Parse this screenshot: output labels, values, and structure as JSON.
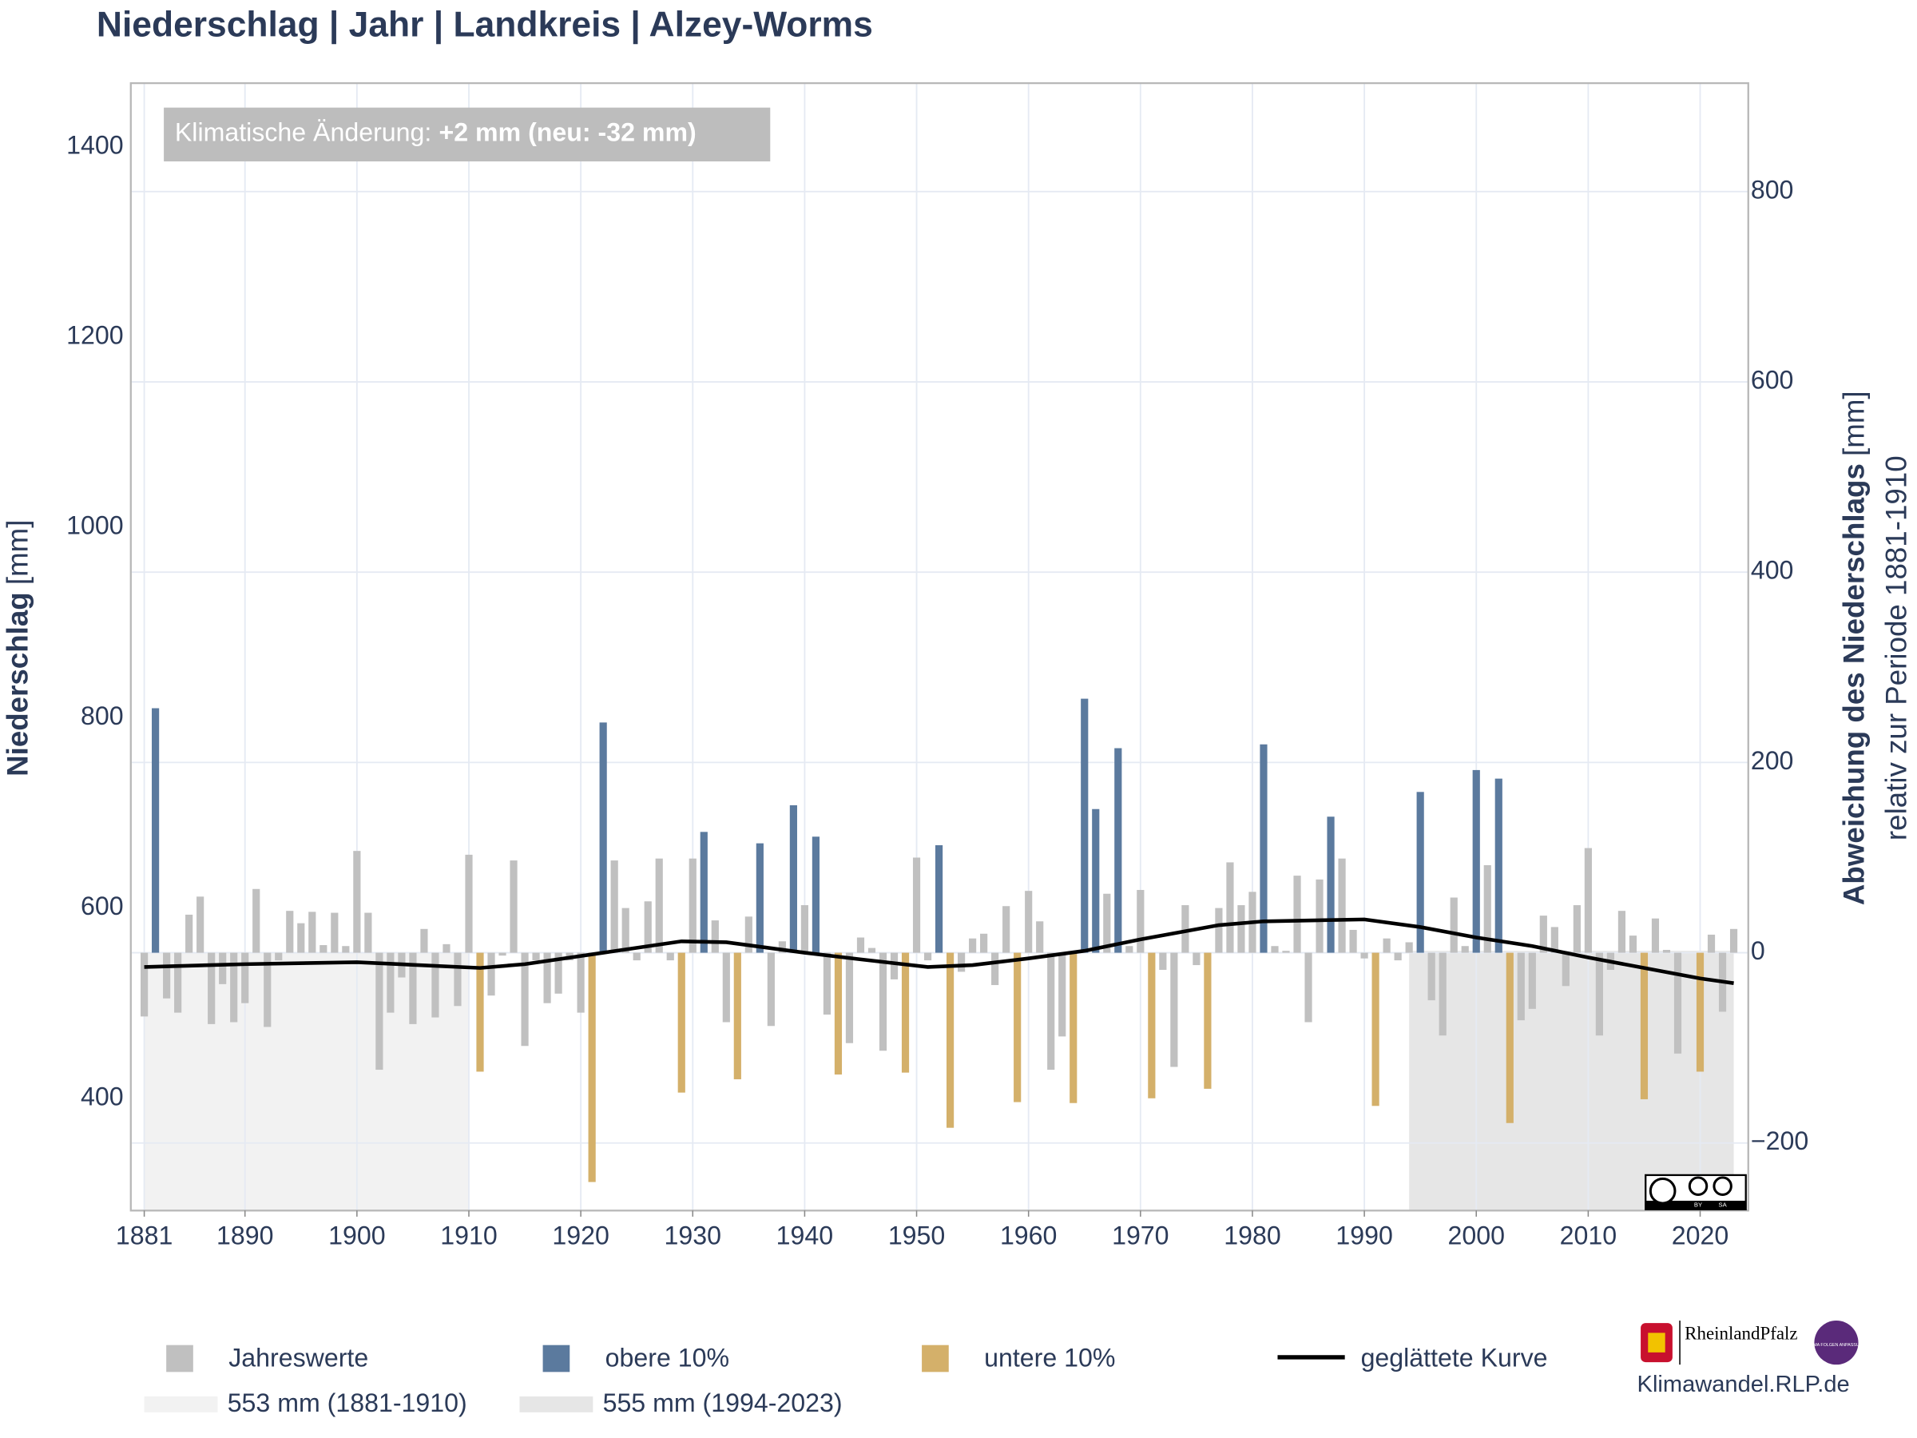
{
  "chart_data": {
    "type": "bar",
    "title": "Niederschlag | Jahr | Landkreis | Alzey-Worms",
    "annotation": {
      "label": "Klimatische Änderung:",
      "value": "+2 mm (neu: -32 mm)"
    },
    "y_label": {
      "name": "Niederschlag",
      "unit": "[mm]"
    },
    "y2_label": {
      "name": "Abweichung des Niederschlags",
      "unit": "[mm]",
      "subtitle": "relativ zur Periode 1881-1910"
    },
    "xlim": [
      1879.8,
      2024.3
    ],
    "xticks": [
      1881,
      1890,
      1900,
      1910,
      1920,
      1930,
      1940,
      1950,
      1960,
      1970,
      1980,
      1990,
      2000,
      2010,
      2020
    ],
    "ylim": [
      282,
      1467
    ],
    "yticks": [
      400,
      600,
      800,
      1000,
      1200,
      1400
    ],
    "y2lim": [
      -271,
      914
    ],
    "y2ticks": [
      {
        "value": -200,
        "label": "−200"
      },
      0,
      200,
      400,
      600,
      800
    ],
    "grid": true,
    "x": [
      1881,
      1882,
      1883,
      1884,
      1885,
      1886,
      1887,
      1888,
      1889,
      1890,
      1891,
      1892,
      1893,
      1894,
      1895,
      1896,
      1897,
      1898,
      1899,
      1900,
      1901,
      1902,
      1903,
      1904,
      1905,
      1906,
      1907,
      1908,
      1909,
      1910,
      1911,
      1912,
      1913,
      1914,
      1915,
      1916,
      1917,
      1918,
      1919,
      1920,
      1921,
      1922,
      1923,
      1924,
      1925,
      1926,
      1927,
      1928,
      1929,
      1930,
      1931,
      1932,
      1933,
      1934,
      1935,
      1936,
      1937,
      1938,
      1939,
      1940,
      1941,
      1942,
      1943,
      1944,
      1945,
      1946,
      1947,
      1948,
      1949,
      1950,
      1951,
      1952,
      1953,
      1954,
      1955,
      1956,
      1957,
      1958,
      1959,
      1960,
      1961,
      1962,
      1963,
      1964,
      1965,
      1966,
      1967,
      1968,
      1969,
      1970,
      1971,
      1972,
      1973,
      1974,
      1975,
      1976,
      1977,
      1978,
      1979,
      1980,
      1981,
      1982,
      1983,
      1984,
      1985,
      1986,
      1987,
      1988,
      1989,
      1990,
      1991,
      1992,
      1993,
      1994,
      1995,
      1996,
      1997,
      1998,
      1999,
      2000,
      2001,
      2002,
      2003,
      2004,
      2005,
      2006,
      2007,
      2008,
      2009,
      2010,
      2011,
      2012,
      2013,
      2014,
      2015,
      2016,
      2017,
      2018,
      2019,
      2020,
      2021,
      2022,
      2023
    ],
    "series": [
      {
        "name": "Jahreswerte",
        "color": "#c0c0c0",
        "values": [
          486,
          null,
          505,
          490,
          593,
          612,
          478,
          520,
          480,
          500,
          620,
          475,
          545,
          597,
          584,
          596,
          561,
          595,
          560,
          660,
          595,
          430,
          490,
          527,
          478,
          578,
          485,
          562,
          497,
          656,
          null,
          508,
          550,
          650,
          455,
          545,
          500,
          510,
          545,
          490,
          null,
          null,
          650,
          600,
          545,
          607,
          652,
          545,
          null,
          652,
          null,
          587,
          480,
          null,
          591,
          null,
          476,
          565,
          null,
          603,
          null,
          488,
          null,
          458,
          569,
          558,
          450,
          525,
          null,
          653,
          545,
          null,
          null,
          533,
          568,
          573,
          519,
          602,
          null,
          618,
          586,
          430,
          465,
          null,
          null,
          null,
          615,
          null,
          560,
          619,
          null,
          535,
          433,
          603,
          540,
          null,
          600,
          648,
          603,
          617,
          null,
          560,
          555,
          634,
          480,
          630,
          null,
          652,
          577,
          547,
          null,
          568,
          545,
          564,
          null,
          503,
          466,
          611,
          560,
          null,
          645,
          null,
          null,
          482,
          494,
          592,
          580,
          518,
          603,
          663,
          466,
          535,
          597,
          571,
          null,
          589,
          556,
          447,
          553,
          null,
          572,
          491,
          578
        ]
      },
      {
        "name": "obere 10%",
        "color": "#5b7a9e",
        "values": [
          null,
          810,
          null,
          null,
          null,
          null,
          null,
          null,
          null,
          null,
          null,
          null,
          null,
          null,
          null,
          null,
          null,
          null,
          null,
          null,
          null,
          null,
          null,
          null,
          null,
          null,
          null,
          null,
          null,
          null,
          null,
          null,
          null,
          null,
          null,
          null,
          null,
          null,
          null,
          null,
          null,
          795,
          null,
          null,
          null,
          null,
          null,
          null,
          null,
          null,
          680,
          null,
          null,
          null,
          null,
          668,
          null,
          null,
          708,
          null,
          675,
          null,
          null,
          null,
          null,
          null,
          null,
          null,
          null,
          null,
          null,
          666,
          null,
          null,
          null,
          null,
          null,
          null,
          null,
          null,
          null,
          null,
          null,
          null,
          820,
          704,
          null,
          768,
          null,
          null,
          null,
          null,
          null,
          null,
          null,
          null,
          null,
          null,
          null,
          null,
          772,
          null,
          null,
          null,
          null,
          null,
          696,
          null,
          null,
          null,
          null,
          null,
          null,
          null,
          722,
          null,
          null,
          null,
          null,
          745,
          null,
          736,
          null,
          null,
          null,
          null,
          null,
          null,
          null,
          null,
          null,
          null,
          null,
          null,
          null,
          null,
          null,
          null,
          null,
          null,
          null,
          null,
          null
        ]
      },
      {
        "name": "untere 10%",
        "color": "#d4b06a",
        "values": [
          null,
          null,
          null,
          null,
          null,
          null,
          null,
          null,
          null,
          null,
          null,
          null,
          null,
          null,
          null,
          null,
          null,
          null,
          null,
          null,
          null,
          null,
          null,
          null,
          null,
          null,
          null,
          null,
          null,
          null,
          428,
          null,
          null,
          null,
          null,
          null,
          null,
          null,
          null,
          null,
          312,
          null,
          null,
          null,
          null,
          null,
          null,
          null,
          406,
          null,
          null,
          null,
          null,
          420,
          null,
          null,
          null,
          null,
          null,
          null,
          null,
          null,
          425,
          null,
          null,
          null,
          null,
          null,
          427,
          null,
          null,
          null,
          369,
          null,
          null,
          null,
          null,
          null,
          396,
          null,
          null,
          null,
          null,
          395,
          null,
          null,
          null,
          null,
          null,
          null,
          400,
          null,
          null,
          null,
          null,
          410,
          null,
          null,
          null,
          null,
          null,
          null,
          null,
          null,
          null,
          null,
          null,
          null,
          null,
          null,
          392,
          null,
          null,
          null,
          null,
          null,
          null,
          null,
          null,
          null,
          null,
          null,
          374,
          null,
          null,
          null,
          null,
          null,
          null,
          null,
          null,
          null,
          null,
          null,
          399,
          null,
          null,
          null,
          null,
          428,
          null,
          null,
          null
        ]
      }
    ],
    "smooth": {
      "name": "geglättete Kurve",
      "color": "#000000",
      "x": [
        1881,
        1890,
        1900,
        1911,
        1915,
        1922,
        1929,
        1933,
        1940,
        1945,
        1951,
        1955,
        1960,
        1965,
        1970,
        1977,
        1981,
        1990,
        1995,
        2000,
        2005,
        2010,
        2015,
        2020,
        2023
      ],
      "values": [
        538,
        541,
        543,
        537,
        541,
        553,
        565,
        564,
        553,
        546,
        538,
        540,
        547,
        555,
        567,
        582,
        586,
        588,
        580,
        569,
        560,
        548,
        537,
        526,
        521
      ]
    },
    "references": [
      {
        "label": "553 mm (1881-1910)",
        "value": 553,
        "start": 1881,
        "end": 1910,
        "color": "#f2f2f2"
      },
      {
        "label": "555 mm (1994-2023)",
        "value": 555,
        "start": 1994,
        "end": 2023,
        "color": "#e6e6e6"
      }
    ],
    "cc_badge": [
      "BY",
      "SA"
    ]
  },
  "footer": {
    "logo": "RheinlandPfalz",
    "badge": "KLIMA FOLGEN ANPASSUNG",
    "site": "Klimawandel.RLP.de"
  }
}
